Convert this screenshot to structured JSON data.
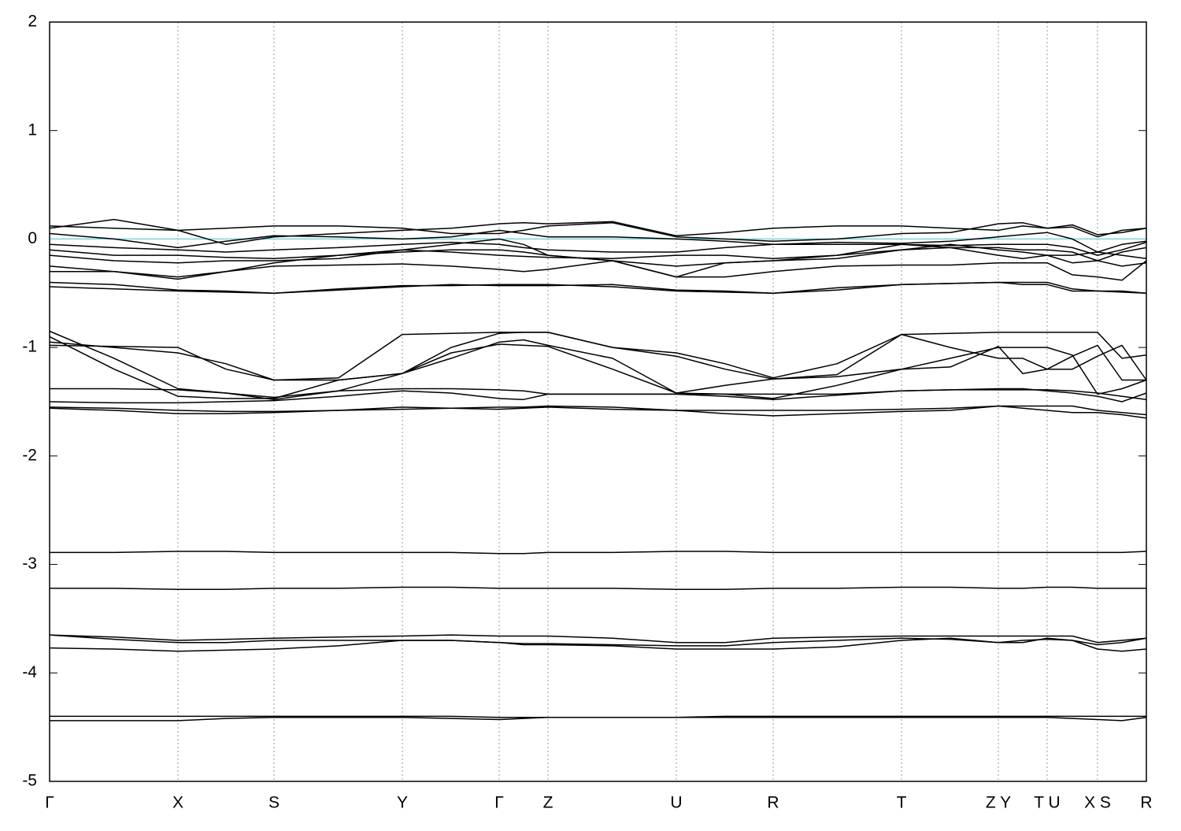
{
  "chart_data": {
    "type": "line",
    "x": [
      0,
      82,
      163,
      224,
      285,
      367,
      448,
      510,
      571,
      602,
      633,
      715,
      796,
      858,
      919,
      1000,
      1082,
      1144,
      1205,
      1236,
      1267,
      1299,
      1331,
      1362,
      1393
    ],
    "xlim": [
      0,
      1393
    ],
    "xticks": [
      {
        "value": 0,
        "label": "Γ"
      },
      {
        "value": 163,
        "label": "X"
      },
      {
        "value": 285,
        "label": "S"
      },
      {
        "value": 448,
        "label": "Y"
      },
      {
        "value": 571,
        "label": "Γ"
      },
      {
        "value": 633,
        "label": "Z"
      },
      {
        "value": 796,
        "label": "U"
      },
      {
        "value": 919,
        "label": "R"
      },
      {
        "value": 1082,
        "label": "T"
      },
      {
        "value": 1205,
        "label": "Z Y"
      },
      {
        "value": 1267,
        "label": "T U"
      },
      {
        "value": 1331,
        "label": "X S"
      },
      {
        "value": 1393,
        "label": "R"
      }
    ],
    "ylim": [
      -5,
      2
    ],
    "yticks": [
      -5,
      -4,
      -3,
      -2,
      -1,
      0,
      1,
      2
    ],
    "grid": true,
    "line_color": "#000000",
    "fermi_level": {
      "value": 0,
      "color": "#7fd3dc"
    },
    "series": [
      {
        "values": [
          -4.44,
          -4.44,
          -4.44,
          -4.42,
          -4.41,
          -4.41,
          -4.41,
          -4.42,
          -4.43,
          -4.42,
          -4.41,
          -4.41,
          -4.41,
          -4.41,
          -4.41,
          -4.41,
          -4.41,
          -4.41,
          -4.41,
          -4.41,
          -4.41,
          -4.42,
          -4.43,
          -4.44,
          -4.41
        ]
      },
      {
        "values": [
          -4.4,
          -4.4,
          -4.4,
          -4.4,
          -4.4,
          -4.4,
          -4.4,
          -4.4,
          -4.41,
          -4.41,
          -4.41,
          -4.41,
          -4.41,
          -4.4,
          -4.4,
          -4.4,
          -4.4,
          -4.4,
          -4.4,
          -4.4,
          -4.4,
          -4.4,
          -4.4,
          -4.4,
          -4.4
        ]
      },
      {
        "values": [
          -3.77,
          -3.78,
          -3.8,
          -3.79,
          -3.78,
          -3.75,
          -3.7,
          -3.7,
          -3.72,
          -3.74,
          -3.74,
          -3.75,
          -3.78,
          -3.78,
          -3.78,
          -3.76,
          -3.7,
          -3.68,
          -3.72,
          -3.72,
          -3.68,
          -3.7,
          -3.78,
          -3.8,
          -3.78
        ]
      },
      {
        "values": [
          -3.65,
          -3.69,
          -3.72,
          -3.72,
          -3.7,
          -3.7,
          -3.7,
          -3.7,
          -3.72,
          -3.73,
          -3.73,
          -3.74,
          -3.75,
          -3.75,
          -3.72,
          -3.7,
          -3.68,
          -3.69,
          -3.72,
          -3.7,
          -3.69,
          -3.7,
          -3.74,
          -3.72,
          -3.68
        ]
      },
      {
        "values": [
          -3.65,
          -3.67,
          -3.7,
          -3.69,
          -3.68,
          -3.67,
          -3.66,
          -3.65,
          -3.66,
          -3.66,
          -3.66,
          -3.68,
          -3.72,
          -3.72,
          -3.68,
          -3.67,
          -3.66,
          -3.66,
          -3.66,
          -3.66,
          -3.66,
          -3.66,
          -3.72,
          -3.7,
          -3.68
        ]
      },
      {
        "values": [
          -3.22,
          -3.22,
          -3.23,
          -3.23,
          -3.22,
          -3.22,
          -3.21,
          -3.21,
          -3.22,
          -3.22,
          -3.22,
          -3.22,
          -3.23,
          -3.23,
          -3.22,
          -3.22,
          -3.21,
          -3.21,
          -3.22,
          -3.22,
          -3.21,
          -3.21,
          -3.22,
          -3.22,
          -3.22
        ]
      },
      {
        "values": [
          -2.89,
          -2.89,
          -2.88,
          -2.88,
          -2.89,
          -2.89,
          -2.89,
          -2.89,
          -2.9,
          -2.9,
          -2.89,
          -2.89,
          -2.88,
          -2.88,
          -2.89,
          -2.89,
          -2.89,
          -2.89,
          -2.89,
          -2.89,
          -2.89,
          -2.89,
          -2.89,
          -2.89,
          -2.88
        ]
      },
      {
        "values": [
          -1.56,
          -1.58,
          -1.61,
          -1.61,
          -1.6,
          -1.58,
          -1.55,
          -1.56,
          -1.57,
          -1.56,
          -1.55,
          -1.57,
          -1.58,
          -1.61,
          -1.63,
          -1.61,
          -1.59,
          -1.58,
          -1.54,
          -1.56,
          -1.58,
          -1.6,
          -1.6,
          -1.62,
          -1.65
        ]
      },
      {
        "values": [
          -1.55,
          -1.56,
          -1.58,
          -1.59,
          -1.59,
          -1.58,
          -1.57,
          -1.56,
          -1.55,
          -1.55,
          -1.54,
          -1.55,
          -1.58,
          -1.58,
          -1.58,
          -1.58,
          -1.57,
          -1.56,
          -1.54,
          -1.54,
          -1.54,
          -1.54,
          -1.58,
          -1.6,
          -1.62
        ]
      },
      {
        "values": [
          -1.5,
          -1.51,
          -1.51,
          -1.5,
          -1.49,
          -1.45,
          -1.4,
          -1.42,
          -1.47,
          -1.48,
          -1.43,
          -1.43,
          -1.43,
          -1.45,
          -1.48,
          -1.44,
          -1.4,
          -1.39,
          -1.38,
          -1.38,
          -1.4,
          -1.42,
          -1.45,
          -1.5,
          -1.42
        ]
      },
      {
        "values": [
          -1.38,
          -1.38,
          -1.39,
          -1.42,
          -1.46,
          -1.4,
          -1.38,
          -1.38,
          -1.39,
          -1.4,
          -1.43,
          -1.43,
          -1.43,
          -1.43,
          -1.43,
          -1.43,
          -1.4,
          -1.39,
          -1.39,
          -1.39,
          -1.39,
          -1.4,
          -1.42,
          -1.45,
          -1.48
        ]
      },
      {
        "values": [
          -0.85,
          -1.1,
          -1.38,
          -1.42,
          -1.48,
          -1.4,
          -1.24,
          -1.1,
          -0.95,
          -0.93,
          -0.98,
          -1.1,
          -1.42,
          -1.43,
          -1.47,
          -1.35,
          -1.2,
          -1.18,
          -0.99,
          -1.24,
          -1.2,
          -1.08,
          -0.98,
          -1.3,
          -1.3
        ]
      },
      {
        "values": [
          -0.9,
          -1.2,
          -1.45,
          -1.47,
          -1.47,
          -1.3,
          -1.24,
          -1.05,
          -0.97,
          -0.98,
          -0.99,
          -1.2,
          -1.42,
          -1.35,
          -1.29,
          -1.27,
          -1.2,
          -1.1,
          -1.0,
          -1.0,
          -1.0,
          -1.07,
          -1.43,
          -1.38,
          -1.3
        ]
      },
      {
        "values": [
          -0.98,
          -0.99,
          -1.0,
          -1.2,
          -1.3,
          -1.28,
          -0.88,
          -0.87,
          -0.86,
          -0.86,
          -0.86,
          -1.0,
          -1.05,
          -1.15,
          -1.28,
          -1.15,
          -0.88,
          -0.87,
          -0.86,
          -0.86,
          -0.86,
          -0.86,
          -0.86,
          -1.1,
          -1.07
        ]
      },
      {
        "values": [
          -0.95,
          -1.0,
          -1.05,
          -1.15,
          -1.3,
          -1.3,
          -1.24,
          -1.0,
          -0.87,
          -0.86,
          -0.86,
          -1.0,
          -1.08,
          -1.2,
          -1.29,
          -1.25,
          -0.88,
          -1.0,
          -1.1,
          -1.1,
          -1.2,
          -1.2,
          -1.08,
          -0.98,
          -1.3
        ]
      },
      {
        "values": [
          -0.44,
          -0.46,
          -0.48,
          -0.49,
          -0.5,
          -0.46,
          -0.43,
          -0.43,
          -0.42,
          -0.42,
          -0.42,
          -0.44,
          -0.48,
          -0.49,
          -0.5,
          -0.47,
          -0.42,
          -0.41,
          -0.4,
          -0.42,
          -0.42,
          -0.48,
          -0.48,
          -0.49,
          -0.5
        ]
      },
      {
        "values": [
          -0.4,
          -0.42,
          -0.47,
          -0.48,
          -0.5,
          -0.47,
          -0.44,
          -0.42,
          -0.43,
          -0.43,
          -0.43,
          -0.42,
          -0.47,
          -0.48,
          -0.5,
          -0.45,
          -0.42,
          -0.41,
          -0.4,
          -0.4,
          -0.4,
          -0.46,
          -0.48,
          -0.48,
          -0.5
        ]
      },
      {
        "values": [
          -0.3,
          -0.3,
          -0.35,
          -0.3,
          -0.25,
          -0.24,
          -0.23,
          -0.25,
          -0.28,
          -0.3,
          -0.28,
          -0.2,
          -0.35,
          -0.35,
          -0.3,
          -0.25,
          -0.24,
          -0.24,
          -0.22,
          -0.22,
          -0.22,
          -0.33,
          -0.35,
          -0.38,
          -0.2
        ]
      },
      {
        "values": [
          -0.25,
          -0.3,
          -0.37,
          -0.3,
          -0.22,
          -0.15,
          -0.12,
          -0.1,
          -0.1,
          -0.12,
          -0.15,
          -0.2,
          -0.35,
          -0.22,
          -0.2,
          -0.15,
          -0.05,
          -0.08,
          -0.15,
          -0.18,
          -0.15,
          -0.22,
          -0.2,
          -0.25,
          -0.22
        ]
      },
      {
        "values": [
          -0.15,
          -0.2,
          -0.22,
          -0.2,
          -0.2,
          -0.18,
          -0.1,
          -0.05,
          0.0,
          -0.05,
          -0.15,
          -0.2,
          -0.25,
          -0.22,
          -0.2,
          -0.18,
          -0.1,
          -0.05,
          -0.1,
          -0.12,
          -0.15,
          -0.15,
          -0.12,
          -0.15,
          -0.18
        ]
      },
      {
        "values": [
          -0.1,
          -0.15,
          -0.15,
          -0.17,
          -0.18,
          -0.15,
          -0.1,
          -0.12,
          -0.15,
          -0.16,
          -0.17,
          -0.18,
          -0.15,
          -0.15,
          -0.18,
          -0.15,
          -0.1,
          -0.08,
          -0.08,
          -0.1,
          -0.1,
          -0.12,
          -0.2,
          -0.12,
          -0.08
        ]
      },
      {
        "values": [
          -0.05,
          -0.08,
          -0.1,
          -0.12,
          -0.1,
          -0.08,
          -0.05,
          -0.03,
          -0.05,
          -0.08,
          -0.1,
          -0.12,
          -0.12,
          -0.08,
          -0.05,
          -0.05,
          -0.05,
          -0.06,
          -0.05,
          -0.05,
          -0.05,
          -0.08,
          -0.15,
          -0.1,
          -0.03
        ]
      },
      {
        "values": [
          0.05,
          0.0,
          -0.08,
          -0.02,
          0.03,
          0.02,
          0.0,
          0.02,
          0.08,
          0.05,
          0.02,
          0.02,
          0.0,
          -0.02,
          -0.05,
          -0.03,
          -0.04,
          -0.02,
          0.02,
          0.04,
          0.06,
          0.0,
          -0.12,
          -0.05,
          -0.02
        ]
      },
      {
        "values": [
          0.1,
          0.18,
          0.08,
          -0.05,
          0.02,
          0.05,
          0.08,
          0.1,
          0.14,
          0.15,
          0.14,
          0.16,
          0.03,
          0.06,
          0.1,
          0.12,
          0.12,
          0.1,
          0.08,
          0.12,
          0.1,
          0.11,
          0.02,
          0.08,
          0.1
        ]
      },
      {
        "values": [
          0.12,
          0.1,
          0.08,
          0.1,
          0.12,
          0.12,
          0.1,
          0.05,
          0.05,
          0.08,
          0.12,
          0.15,
          0.02,
          0.0,
          -0.02,
          0.0,
          0.05,
          0.06,
          0.14,
          0.15,
          0.1,
          0.13,
          0.04,
          0.06,
          0.1
        ]
      }
    ]
  }
}
